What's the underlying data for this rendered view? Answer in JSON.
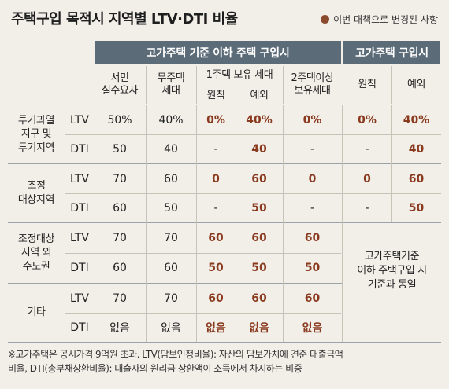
{
  "title": "주택구입 목적시 지역별 LTV·DTI 비율",
  "legend": {
    "label": "이번 대책으로 변경된 사항",
    "color": "#8a4a2c"
  },
  "headers": {
    "group1": "고가주택 기준 이하 주택 구입시",
    "group2": "고가주택 구입시",
    "col_seomin": [
      "서민",
      "실수요자"
    ],
    "col_mujutaek": [
      "무주택",
      "세대"
    ],
    "col_1ju": "1주택 보유 세대",
    "col_2ju": [
      "2주택이상",
      "보유세대"
    ],
    "sub_wonchik": "원칙",
    "sub_yeoe": "예외",
    "g2_wonchik": "원칙",
    "g2_yeoe": "예외"
  },
  "rows": [
    {
      "region": [
        "투기과열",
        "지구 및",
        "투기지역"
      ],
      "ltv": {
        "metric": "LTV",
        "cells": [
          "50%",
          "40%",
          "0%",
          "40%",
          "0%",
          "0%",
          "40%"
        ]
      },
      "dti": {
        "metric": "DTI",
        "cells": [
          "50",
          "40",
          "-",
          "40",
          "-",
          "-",
          "40"
        ]
      }
    },
    {
      "region": [
        "조정",
        "대상지역"
      ],
      "ltv": {
        "metric": "LTV",
        "cells": [
          "70",
          "60",
          "0",
          "60",
          "0",
          "0",
          "60"
        ]
      },
      "dti": {
        "metric": "DTI",
        "cells": [
          "60",
          "50",
          "-",
          "50",
          "-",
          "-",
          "50"
        ]
      }
    },
    {
      "region": [
        "조정대상",
        "지역 외",
        "수도권"
      ],
      "ltv": {
        "metric": "LTV",
        "cells": [
          "70",
          "70",
          "60",
          "60",
          "60"
        ]
      },
      "dti": {
        "metric": "DTI",
        "cells": [
          "60",
          "60",
          "50",
          "50",
          "50"
        ]
      }
    },
    {
      "region": [
        "기타"
      ],
      "ltv": {
        "metric": "LTV",
        "cells": [
          "70",
          "70",
          "60",
          "60",
          "60"
        ]
      },
      "dti": {
        "metric": "DTI",
        "cells": [
          "없음",
          "없음",
          "없음",
          "없음",
          "없음"
        ]
      }
    }
  ],
  "merged_note": [
    "고가주택기준",
    "이하 주택구입 시",
    "기준과 동일"
  ],
  "footnote": [
    "※고가주택은 공시가격 9억원 초과. LTV(담보인정비율): 자산의 담보가치에 견준 대출금액",
    "비율, DTI(총부채상환비율): 대출자의 원리금 상환액이 소득에서 차지하는 비중"
  ]
}
